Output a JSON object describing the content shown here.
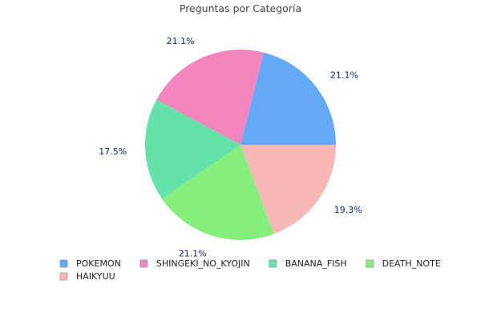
{
  "chart_data": {
    "type": "pie",
    "title": "Preguntas por Categoría",
    "start_angle_deg": 0,
    "direction": "counterclockwise",
    "legend_position": "bottom",
    "slices": [
      {
        "label": "POKEMON",
        "percent": 21.1,
        "percent_label": "21.1%",
        "color": "#63a9f6"
      },
      {
        "label": "SHINGEKI_NO_KYOJIN",
        "percent": 21.1,
        "percent_label": "21.1%",
        "color": "#f386bf"
      },
      {
        "label": "BANANA_FISH",
        "percent": 17.5,
        "percent_label": "17.5%",
        "color": "#63e3a9"
      },
      {
        "label": "DEATH_NOTE",
        "percent": 21.1,
        "percent_label": "21.1%",
        "color": "#86ef7b"
      },
      {
        "label": "HAIKYUU",
        "percent": 19.3,
        "percent_label": "19.3%",
        "color": "#f7b8b6"
      }
    ]
  }
}
